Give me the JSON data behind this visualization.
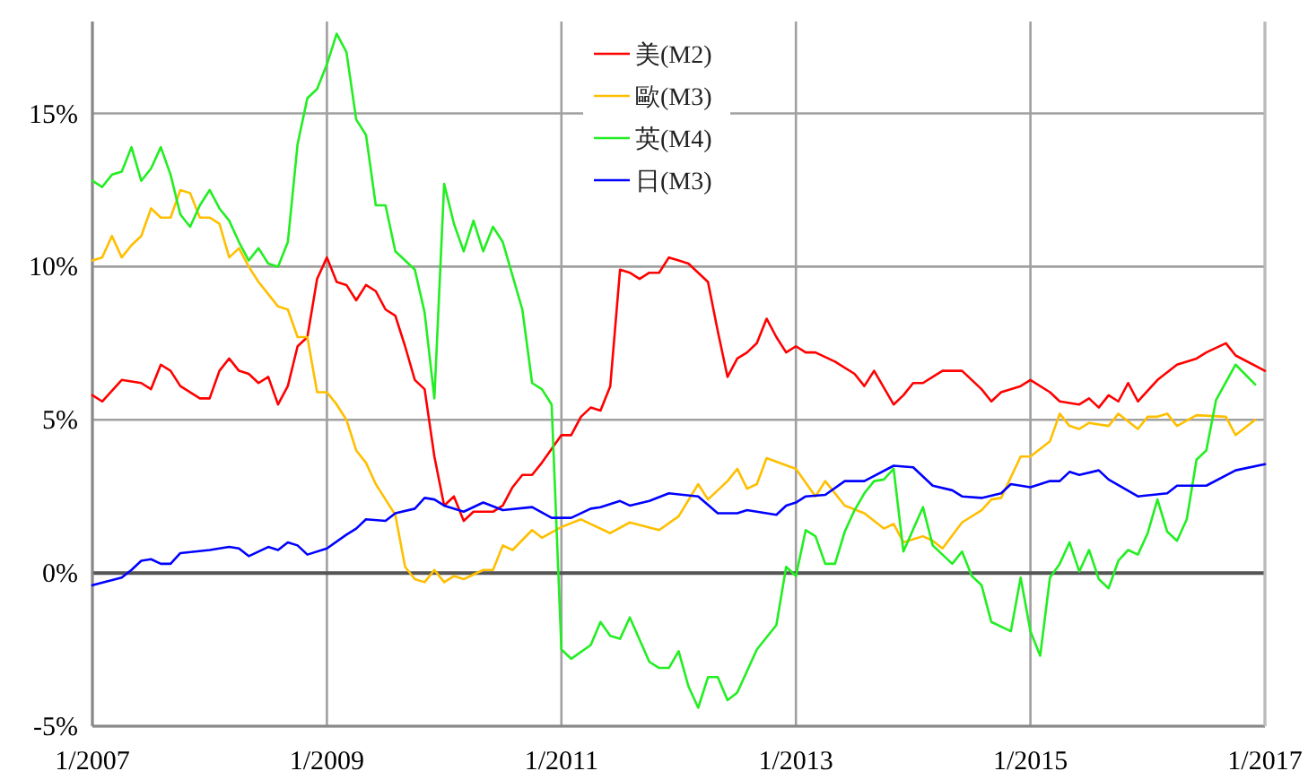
{
  "chart_data": {
    "type": "line",
    "xlim": [
      "2007-01",
      "2017-01"
    ],
    "ylim": [
      -5,
      18
    ],
    "xticks": [
      {
        "value": "2007-01",
        "label": "1/2007"
      },
      {
        "value": "2009-01",
        "label": "1/2009"
      },
      {
        "value": "2011-01",
        "label": "1/2011"
      },
      {
        "value": "2013-01",
        "label": "1/2013"
      },
      {
        "value": "2015-01",
        "label": "1/2015"
      },
      {
        "value": "2017-01",
        "label": "1/2017"
      }
    ],
    "yticks": [
      {
        "value": -5,
        "label": "-5%"
      },
      {
        "value": 0,
        "label": "0%"
      },
      {
        "value": 5,
        "label": "5%"
      },
      {
        "value": 10,
        "label": "10%"
      },
      {
        "value": 15,
        "label": "15%"
      }
    ],
    "grid": true,
    "legend": "top",
    "marker": "none",
    "line_style": "solid",
    "ref_lines": [
      {
        "axis": "y",
        "value": 0,
        "color": "#555555"
      }
    ],
    "series": [
      {
        "name": "美(M2)",
        "color": "#ff0000",
        "x": [
          "2007-01",
          "2007-02",
          "2007-04",
          "2007-06",
          "2007-07",
          "2007-08",
          "2007-09",
          "2007-10",
          "2007-12",
          "2008-01",
          "2008-02",
          "2008-03",
          "2008-04",
          "2008-05",
          "2008-06",
          "2008-07",
          "2008-08",
          "2008-09",
          "2008-10",
          "2008-11",
          "2008-12",
          "2009-01",
          "2009-02",
          "2009-03",
          "2009-04",
          "2009-05",
          "2009-06",
          "2009-07",
          "2009-08",
          "2009-09",
          "2009-10",
          "2009-11",
          "2009-12",
          "2010-01",
          "2010-02",
          "2010-03",
          "2010-04",
          "2010-06",
          "2010-07",
          "2010-08",
          "2010-09",
          "2010-10",
          "2010-11",
          "2011-01",
          "2011-02",
          "2011-03",
          "2011-04",
          "2011-05",
          "2011-06",
          "2011-07",
          "2011-08",
          "2011-09",
          "2011-10",
          "2011-11",
          "2011-12",
          "2012-01",
          "2012-02",
          "2012-03",
          "2012-04",
          "2012-05",
          "2012-06",
          "2012-07",
          "2012-08",
          "2012-09",
          "2012-10",
          "2012-11",
          "2012-12",
          "2013-01",
          "2013-02",
          "2013-03",
          "2013-05",
          "2013-07",
          "2013-08",
          "2013-09",
          "2013-11",
          "2013-12",
          "2014-01",
          "2014-02",
          "2014-03",
          "2014-04",
          "2014-06",
          "2014-07",
          "2014-08",
          "2014-09",
          "2014-10",
          "2014-12",
          "2015-01",
          "2015-03",
          "2015-04",
          "2015-06",
          "2015-07",
          "2015-08",
          "2015-09",
          "2015-10",
          "2015-11",
          "2015-12",
          "2016-02",
          "2016-04",
          "2016-06",
          "2016-07",
          "2016-09",
          "2016-10",
          "2017-01"
        ],
        "values": [
          5.8,
          5.6,
          6.3,
          6.2,
          6.0,
          6.8,
          6.6,
          6.1,
          5.7,
          5.7,
          6.6,
          7.0,
          6.6,
          6.5,
          6.2,
          6.4,
          5.5,
          6.1,
          7.4,
          7.7,
          9.6,
          10.3,
          9.5,
          9.4,
          8.9,
          9.4,
          9.2,
          8.6,
          8.4,
          7.4,
          6.3,
          6.0,
          3.8,
          2.2,
          2.5,
          1.7,
          2.0,
          2.0,
          2.2,
          2.8,
          3.2,
          3.2,
          3.6,
          4.5,
          4.5,
          5.1,
          5.4,
          5.3,
          6.1,
          9.9,
          9.8,
          9.6,
          9.8,
          9.8,
          10.3,
          10.2,
          10.1,
          9.8,
          9.5,
          7.9,
          6.4,
          7.0,
          7.2,
          7.5,
          8.3,
          7.7,
          7.2,
          7.4,
          7.2,
          7.2,
          6.9,
          6.5,
          6.1,
          6.6,
          5.5,
          5.8,
          6.2,
          6.2,
          6.4,
          6.6,
          6.6,
          6.3,
          6.0,
          5.6,
          5.9,
          6.1,
          6.3,
          5.9,
          5.6,
          5.5,
          5.7,
          5.4,
          5.8,
          5.6,
          6.2,
          5.6,
          6.3,
          6.8,
          7.0,
          7.2,
          7.5,
          7.1,
          6.6
        ]
      },
      {
        "name": "歐(M3)",
        "color": "#ffbf00",
        "x": [
          "2007-01",
          "2007-02",
          "2007-03",
          "2007-04",
          "2007-05",
          "2007-06",
          "2007-07",
          "2007-08",
          "2007-09",
          "2007-10",
          "2007-11",
          "2007-12",
          "2008-01",
          "2008-02",
          "2008-03",
          "2008-04",
          "2008-05",
          "2008-06",
          "2008-07",
          "2008-08",
          "2008-09",
          "2008-10",
          "2008-11",
          "2008-12",
          "2009-01",
          "2009-02",
          "2009-03",
          "2009-04",
          "2009-05",
          "2009-06",
          "2009-07",
          "2009-08",
          "2009-09",
          "2009-10",
          "2009-11",
          "2009-12",
          "2010-01",
          "2010-02",
          "2010-03",
          "2010-05",
          "2010-06",
          "2010-07",
          "2010-08",
          "2010-10",
          "2010-11",
          "2011-01",
          "2011-03",
          "2011-06",
          "2011-08",
          "2011-11",
          "2012-01",
          "2012-03",
          "2012-04",
          "2012-06",
          "2012-07",
          "2012-08",
          "2012-09",
          "2012-10",
          "2013-01",
          "2013-03",
          "2013-04",
          "2013-06",
          "2013-08",
          "2013-10",
          "2013-11",
          "2013-12",
          "2014-02",
          "2014-03",
          "2014-04",
          "2014-06",
          "2014-08",
          "2014-09",
          "2014-10",
          "2014-12",
          "2015-01",
          "2015-03",
          "2015-04",
          "2015-05",
          "2015-06",
          "2015-07",
          "2015-09",
          "2015-10",
          "2015-12",
          "2016-01",
          "2016-02",
          "2016-03",
          "2016-04",
          "2016-06",
          "2016-09",
          "2016-10",
          "2016-12"
        ],
        "values": [
          10.2,
          10.3,
          11.0,
          10.3,
          10.7,
          11.0,
          11.9,
          11.6,
          11.6,
          12.5,
          12.4,
          11.6,
          11.6,
          11.4,
          10.3,
          10.6,
          10.0,
          9.5,
          9.1,
          8.7,
          8.6,
          7.7,
          7.7,
          5.9,
          5.9,
          5.5,
          5.0,
          4.0,
          3.6,
          2.9,
          2.4,
          1.9,
          0.2,
          -0.2,
          -0.3,
          0.1,
          -0.3,
          -0.1,
          -0.2,
          0.1,
          0.1,
          0.9,
          0.75,
          1.4,
          1.15,
          1.5,
          1.75,
          1.3,
          1.65,
          1.4,
          1.85,
          2.9,
          2.4,
          3.0,
          3.4,
          2.75,
          2.9,
          3.75,
          3.4,
          2.5,
          3.0,
          2.2,
          1.95,
          1.45,
          1.6,
          1.0,
          1.2,
          1.05,
          0.8,
          1.65,
          2.05,
          2.4,
          2.45,
          3.8,
          3.8,
          4.3,
          5.2,
          4.8,
          4.7,
          4.9,
          4.8,
          5.2,
          4.7,
          5.1,
          5.1,
          5.2,
          4.8,
          5.15,
          5.1,
          4.5,
          5.0
        ]
      },
      {
        "name": "英(M4)",
        "color": "#22ee22",
        "x": [
          "2007-01",
          "2007-02",
          "2007-03",
          "2007-04",
          "2007-05",
          "2007-06",
          "2007-07",
          "2007-08",
          "2007-09",
          "2007-10",
          "2007-11",
          "2007-12",
          "2008-01",
          "2008-02",
          "2008-03",
          "2008-04",
          "2008-05",
          "2008-06",
          "2008-07",
          "2008-08",
          "2008-09",
          "2008-10",
          "2008-11",
          "2008-12",
          "2009-01",
          "2009-02",
          "2009-03",
          "2009-04",
          "2009-05",
          "2009-06",
          "2009-07",
          "2009-08",
          "2009-09",
          "2009-10",
          "2009-11",
          "2009-12",
          "2010-01",
          "2010-02",
          "2010-03",
          "2010-04",
          "2010-05",
          "2010-06",
          "2010-07",
          "2010-08",
          "2010-09",
          "2010-10",
          "2010-11",
          "2010-12",
          "2011-01",
          "2011-02",
          "2011-04",
          "2011-05",
          "2011-06",
          "2011-07",
          "2011-08",
          "2011-10",
          "2011-11",
          "2011-12",
          "2012-01",
          "2012-02",
          "2012-03",
          "2012-04",
          "2012-05",
          "2012-06",
          "2012-07",
          "2012-09",
          "2012-11",
          "2012-12",
          "2013-01",
          "2013-02",
          "2013-03",
          "2013-04",
          "2013-05",
          "2013-06",
          "2013-07",
          "2013-08",
          "2013-09",
          "2013-10",
          "2013-11",
          "2013-12",
          "2014-02",
          "2014-03",
          "2014-05",
          "2014-06",
          "2014-07",
          "2014-08",
          "2014-09",
          "2014-11",
          "2014-12",
          "2015-01",
          "2015-02",
          "2015-03",
          "2015-04",
          "2015-05",
          "2015-06",
          "2015-07",
          "2015-08",
          "2015-09",
          "2015-10",
          "2015-11",
          "2015-12",
          "2016-01",
          "2016-02",
          "2016-03",
          "2016-04",
          "2016-05",
          "2016-06",
          "2016-07",
          "2016-08",
          "2016-10",
          "2016-12"
        ],
        "values": [
          12.8,
          12.6,
          13.0,
          13.1,
          13.9,
          12.8,
          13.2,
          13.9,
          13.0,
          11.7,
          11.3,
          12.0,
          12.5,
          11.9,
          11.5,
          10.8,
          10.2,
          10.6,
          10.1,
          10.0,
          10.8,
          14.0,
          15.5,
          15.8,
          16.6,
          17.6,
          17.0,
          14.8,
          14.3,
          12.0,
          12.0,
          10.5,
          10.2,
          9.9,
          8.5,
          5.7,
          12.7,
          11.4,
          10.5,
          11.5,
          10.5,
          11.3,
          10.8,
          9.7,
          8.6,
          6.2,
          6.0,
          5.5,
          -2.5,
          -2.8,
          -2.35,
          -1.6,
          -2.05,
          -2.15,
          -1.45,
          -2.9,
          -3.1,
          -3.1,
          -2.55,
          -3.7,
          -4.4,
          -3.4,
          -3.4,
          -4.15,
          -3.9,
          -2.5,
          -1.7,
          0.2,
          -0.1,
          1.4,
          1.2,
          0.3,
          0.3,
          1.35,
          2.05,
          2.6,
          3.0,
          3.05,
          3.4,
          0.7,
          2.15,
          0.9,
          0.3,
          0.7,
          -0.1,
          -0.4,
          -1.6,
          -1.9,
          -0.15,
          -1.9,
          -2.7,
          -0.15,
          0.3,
          1.0,
          0.05,
          0.75,
          -0.2,
          -0.5,
          0.4,
          0.75,
          0.6,
          1.3,
          2.4,
          1.35,
          1.05,
          1.75,
          3.7,
          4.0,
          5.65,
          6.8,
          6.15
        ]
      },
      {
        "name": "日(M3)",
        "color": "#0000ff",
        "x": [
          "2007-01",
          "2007-04",
          "2007-05",
          "2007-06",
          "2007-07",
          "2007-08",
          "2007-09",
          "2007-10",
          "2008-01",
          "2008-03",
          "2008-04",
          "2008-05",
          "2008-07",
          "2008-08",
          "2008-09",
          "2008-10",
          "2008-11",
          "2009-01",
          "2009-03",
          "2009-04",
          "2009-05",
          "2009-07",
          "2009-08",
          "2009-10",
          "2009-11",
          "2009-12",
          "2010-01",
          "2010-03",
          "2010-05",
          "2010-07",
          "2010-10",
          "2010-12",
          "2011-02",
          "2011-04",
          "2011-05",
          "2011-07",
          "2011-08",
          "2011-10",
          "2011-12",
          "2012-03",
          "2012-05",
          "2012-07",
          "2012-08",
          "2012-11",
          "2012-12",
          "2013-01",
          "2013-02",
          "2013-04",
          "2013-06",
          "2013-08",
          "2013-11",
          "2014-01",
          "2014-03",
          "2014-05",
          "2014-06",
          "2014-08",
          "2014-10",
          "2014-11",
          "2015-01",
          "2015-03",
          "2015-04",
          "2015-05",
          "2015-06",
          "2015-08",
          "2015-09",
          "2015-12",
          "2016-03",
          "2016-04",
          "2016-07",
          "2016-10",
          "2017-01"
        ],
        "values": [
          -0.4,
          -0.15,
          0.1,
          0.4,
          0.45,
          0.3,
          0.3,
          0.65,
          0.75,
          0.85,
          0.8,
          0.55,
          0.85,
          0.75,
          1.0,
          0.9,
          0.6,
          0.8,
          1.25,
          1.45,
          1.75,
          1.7,
          1.95,
          2.1,
          2.45,
          2.4,
          2.2,
          2.0,
          2.3,
          2.05,
          2.15,
          1.8,
          1.8,
          2.1,
          2.15,
          2.35,
          2.2,
          2.35,
          2.6,
          2.5,
          1.95,
          1.95,
          2.05,
          1.9,
          2.2,
          2.3,
          2.5,
          2.55,
          3.0,
          3.0,
          3.5,
          3.45,
          2.85,
          2.7,
          2.5,
          2.45,
          2.6,
          2.9,
          2.8,
          3.0,
          3.0,
          3.3,
          3.2,
          3.35,
          3.05,
          2.5,
          2.6,
          2.85,
          2.85,
          3.35,
          3.55
        ]
      }
    ]
  }
}
